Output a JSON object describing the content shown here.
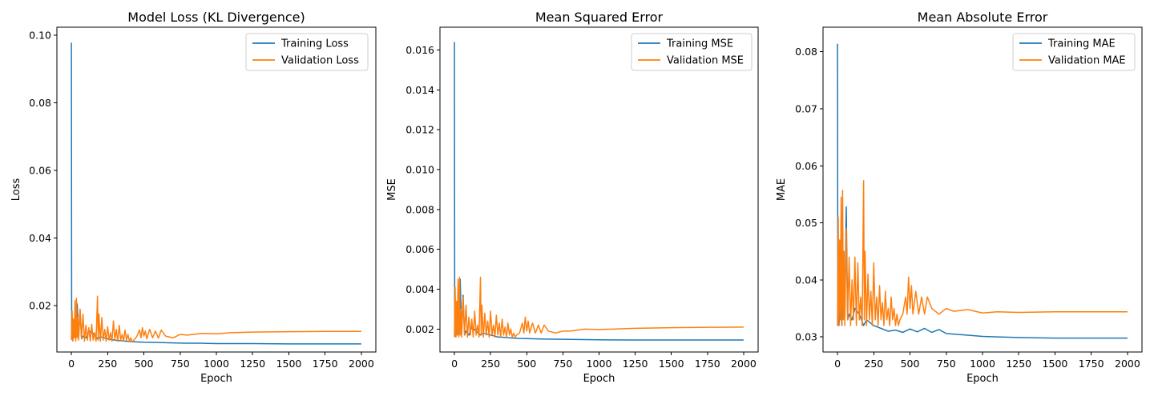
{
  "chart_data": [
    {
      "type": "line",
      "title": "Model Loss (KL Divergence)",
      "xlabel": "Epoch",
      "ylabel": "Loss",
      "xlim": [
        -100,
        2100
      ],
      "ylim": [
        0.0063,
        0.1024
      ],
      "xticks": [
        0,
        250,
        500,
        750,
        1000,
        1250,
        1500,
        1750,
        2000
      ],
      "xtick_labels": [
        "0",
        "250",
        "500",
        "750",
        "1000",
        "1250",
        "1500",
        "1750",
        "2000"
      ],
      "yticks": [
        0.02,
        0.04,
        0.06,
        0.08,
        0.1
      ],
      "ytick_labels": [
        "0.02",
        "0.04",
        "0.06",
        "0.08",
        "0.10"
      ],
      "legend_position": "top-right",
      "grid": false,
      "series": [
        {
          "name": "Training Loss",
          "color": "#1f77b4",
          "x": [
            0,
            2,
            4,
            6,
            10,
            20,
            30,
            40,
            50,
            60,
            70,
            80,
            100,
            120,
            150,
            180,
            200,
            250,
            300,
            350,
            400,
            450,
            500,
            600,
            700,
            800,
            900,
            1000,
            1250,
            1500,
            1750,
            2000
          ],
          "y": [
            0.0978,
            0.012,
            0.0105,
            0.0112,
            0.0098,
            0.013,
            0.0105,
            0.0205,
            0.0115,
            0.0185,
            0.0102,
            0.011,
            0.0105,
            0.0125,
            0.0118,
            0.0102,
            0.0108,
            0.0102,
            0.0098,
            0.0096,
            0.0094,
            0.0093,
            0.0092,
            0.0091,
            0.009,
            0.0089,
            0.0089,
            0.0088,
            0.0088,
            0.0087,
            0.0087,
            0.0087
          ]
        },
        {
          "name": "Validation Loss",
          "color": "#ff7f0e",
          "x": [
            0,
            5,
            10,
            15,
            20,
            25,
            30,
            35,
            40,
            45,
            50,
            60,
            70,
            80,
            90,
            100,
            110,
            120,
            130,
            140,
            150,
            160,
            170,
            180,
            185,
            190,
            200,
            210,
            220,
            230,
            240,
            250,
            260,
            270,
            280,
            290,
            300,
            310,
            320,
            330,
            340,
            350,
            360,
            370,
            380,
            390,
            400,
            410,
            420,
            430,
            450,
            470,
            480,
            490,
            500,
            510,
            520,
            540,
            560,
            580,
            600,
            620,
            650,
            700,
            750,
            800,
            900,
            1000,
            1100,
            1250,
            1500,
            1750,
            2000
          ],
          "y": [
            0.0098,
            0.0185,
            0.0095,
            0.016,
            0.0105,
            0.0215,
            0.0095,
            0.0222,
            0.0105,
            0.0165,
            0.0098,
            0.019,
            0.0102,
            0.0175,
            0.0095,
            0.0142,
            0.0098,
            0.0135,
            0.0095,
            0.0145,
            0.0098,
            0.012,
            0.0095,
            0.0228,
            0.0098,
            0.0175,
            0.0095,
            0.0165,
            0.0098,
            0.013,
            0.0095,
            0.0138,
            0.0098,
            0.012,
            0.0095,
            0.0155,
            0.0098,
            0.013,
            0.0095,
            0.0142,
            0.0098,
            0.0115,
            0.0095,
            0.0128,
            0.0098,
            0.0115,
            0.0095,
            0.0105,
            0.0092,
            0.0098,
            0.0108,
            0.0128,
            0.0105,
            0.0135,
            0.011,
            0.0125,
            0.0102,
            0.013,
            0.0105,
            0.0125,
            0.0104,
            0.0128,
            0.011,
            0.0105,
            0.0115,
            0.0113,
            0.0118,
            0.0117,
            0.012,
            0.0122,
            0.0123,
            0.0124,
            0.0124
          ]
        }
      ]
    },
    {
      "type": "line",
      "title": "Mean Squared Error",
      "xlabel": "Epoch",
      "ylabel": "MSE",
      "xlim": [
        -100,
        2100
      ],
      "ylim": [
        0.00085,
        0.01714
      ],
      "xticks": [
        0,
        250,
        500,
        750,
        1000,
        1250,
        1500,
        1750,
        2000
      ],
      "xtick_labels": [
        "0",
        "250",
        "500",
        "750",
        "1000",
        "1250",
        "1500",
        "1750",
        "2000"
      ],
      "yticks": [
        0.002,
        0.004,
        0.006,
        0.008,
        0.01,
        0.012,
        0.014,
        0.016
      ],
      "ytick_labels": [
        "0.002",
        "0.004",
        "0.006",
        "0.008",
        "0.010",
        "0.012",
        "0.014",
        "0.016"
      ],
      "legend_position": "top-right",
      "grid": false,
      "series": [
        {
          "name": "Training MSE",
          "color": "#1f77b4",
          "x": [
            0,
            2,
            4,
            6,
            10,
            20,
            30,
            40,
            50,
            60,
            70,
            80,
            100,
            120,
            150,
            180,
            200,
            250,
            300,
            350,
            400,
            450,
            500,
            600,
            700,
            800,
            900,
            1000,
            1250,
            1500,
            1750,
            2000
          ],
          "y": [
            0.0164,
            0.002,
            0.0017,
            0.0018,
            0.0016,
            0.0025,
            0.0017,
            0.0045,
            0.0018,
            0.0037,
            0.0017,
            0.0019,
            0.0017,
            0.0021,
            0.0019,
            0.0017,
            0.0018,
            0.0017,
            0.0016,
            0.00158,
            0.00155,
            0.00153,
            0.00152,
            0.0015,
            0.00149,
            0.00148,
            0.00147,
            0.00146,
            0.00145,
            0.00145,
            0.00145,
            0.00145
          ]
        },
        {
          "name": "Validation MSE",
          "color": "#ff7f0e",
          "x": [
            0,
            5,
            10,
            15,
            20,
            25,
            30,
            35,
            40,
            45,
            50,
            60,
            70,
            80,
            90,
            100,
            110,
            120,
            130,
            140,
            150,
            160,
            170,
            180,
            185,
            190,
            200,
            210,
            220,
            230,
            240,
            250,
            260,
            270,
            280,
            290,
            300,
            310,
            320,
            330,
            340,
            350,
            360,
            370,
            380,
            390,
            400,
            410,
            420,
            430,
            450,
            470,
            480,
            490,
            500,
            510,
            520,
            540,
            560,
            580,
            600,
            620,
            650,
            700,
            750,
            800,
            900,
            1000,
            1100,
            1250,
            1500,
            1750,
            2000
          ],
          "y": [
            0.0016,
            0.0041,
            0.0016,
            0.0034,
            0.0017,
            0.0045,
            0.0016,
            0.0046,
            0.0017,
            0.003,
            0.0016,
            0.0036,
            0.0017,
            0.0032,
            0.0016,
            0.0026,
            0.0017,
            0.0025,
            0.0016,
            0.0029,
            0.0017,
            0.0022,
            0.0016,
            0.0046,
            0.0017,
            0.0032,
            0.0016,
            0.0028,
            0.0017,
            0.0024,
            0.0016,
            0.0029,
            0.0017,
            0.0022,
            0.0016,
            0.0027,
            0.0017,
            0.0023,
            0.0016,
            0.0025,
            0.0017,
            0.0021,
            0.0016,
            0.0023,
            0.0017,
            0.002,
            0.0016,
            0.0018,
            0.0016,
            0.0017,
            0.0018,
            0.0023,
            0.0018,
            0.0026,
            0.0019,
            0.0024,
            0.0018,
            0.0023,
            0.0018,
            0.0022,
            0.0018,
            0.0022,
            0.0019,
            0.0018,
            0.0019,
            0.0019,
            0.002,
            0.00198,
            0.002,
            0.00204,
            0.00207,
            0.00209,
            0.0021
          ]
        }
      ]
    },
    {
      "type": "line",
      "title": "Mean Absolute Error",
      "xlabel": "Epoch",
      "ylabel": "MAE",
      "xlim": [
        -100,
        2100
      ],
      "ylim": [
        0.02736,
        0.08431
      ],
      "xticks": [
        0,
        250,
        500,
        750,
        1000,
        1250,
        1500,
        1750,
        2000
      ],
      "xtick_labels": [
        "0",
        "250",
        "500",
        "750",
        "1000",
        "1250",
        "1500",
        "1750",
        "2000"
      ],
      "yticks": [
        0.03,
        0.04,
        0.05,
        0.06,
        0.07,
        0.08
      ],
      "ytick_labels": [
        "0.03",
        "0.04",
        "0.05",
        "0.06",
        "0.07",
        "0.08"
      ],
      "legend_position": "top-right",
      "grid": false,
      "series": [
        {
          "name": "Training MAE",
          "color": "#1f77b4",
          "x": [
            0,
            2,
            4,
            6,
            10,
            20,
            30,
            40,
            50,
            60,
            70,
            80,
            100,
            120,
            150,
            180,
            200,
            250,
            300,
            350,
            400,
            450,
            500,
            550,
            600,
            650,
            700,
            750,
            800,
            900,
            1000,
            1100,
            1250,
            1500,
            1750,
            2000
          ],
          "y": [
            0.0814,
            0.034,
            0.032,
            0.033,
            0.032,
            0.036,
            0.032,
            0.045,
            0.033,
            0.0528,
            0.033,
            0.034,
            0.033,
            0.035,
            0.034,
            0.032,
            0.033,
            0.032,
            0.0315,
            0.031,
            0.0312,
            0.0308,
            0.0314,
            0.0309,
            0.0315,
            0.0308,
            0.0313,
            0.0306,
            0.0305,
            0.0303,
            0.0301,
            0.03,
            0.0299,
            0.0298,
            0.0298,
            0.0298
          ]
        },
        {
          "name": "Validation MAE",
          "color": "#ff7f0e",
          "x": [
            0,
            5,
            10,
            15,
            20,
            25,
            30,
            35,
            40,
            45,
            50,
            60,
            70,
            80,
            90,
            100,
            110,
            120,
            130,
            140,
            150,
            160,
            170,
            180,
            185,
            190,
            200,
            210,
            220,
            230,
            240,
            250,
            260,
            270,
            280,
            290,
            300,
            310,
            320,
            330,
            340,
            350,
            360,
            370,
            380,
            390,
            400,
            410,
            420,
            430,
            450,
            470,
            480,
            490,
            500,
            510,
            520,
            540,
            560,
            580,
            600,
            620,
            650,
            700,
            750,
            800,
            900,
            1000,
            1100,
            1250,
            1500,
            1750,
            2000
          ],
          "y": [
            0.032,
            0.051,
            0.032,
            0.047,
            0.033,
            0.0545,
            0.032,
            0.0557,
            0.033,
            0.045,
            0.032,
            0.049,
            0.033,
            0.044,
            0.032,
            0.04,
            0.033,
            0.044,
            0.032,
            0.043,
            0.033,
            0.037,
            0.032,
            0.0574,
            0.033,
            0.045,
            0.032,
            0.041,
            0.033,
            0.038,
            0.032,
            0.043,
            0.033,
            0.037,
            0.032,
            0.039,
            0.033,
            0.036,
            0.032,
            0.038,
            0.033,
            0.035,
            0.032,
            0.037,
            0.033,
            0.035,
            0.032,
            0.034,
            0.032,
            0.033,
            0.034,
            0.037,
            0.034,
            0.0405,
            0.035,
            0.039,
            0.034,
            0.038,
            0.034,
            0.037,
            0.034,
            0.037,
            0.035,
            0.034,
            0.035,
            0.0345,
            0.0348,
            0.0342,
            0.0344,
            0.0343,
            0.0344,
            0.0344,
            0.0344
          ]
        }
      ]
    }
  ]
}
